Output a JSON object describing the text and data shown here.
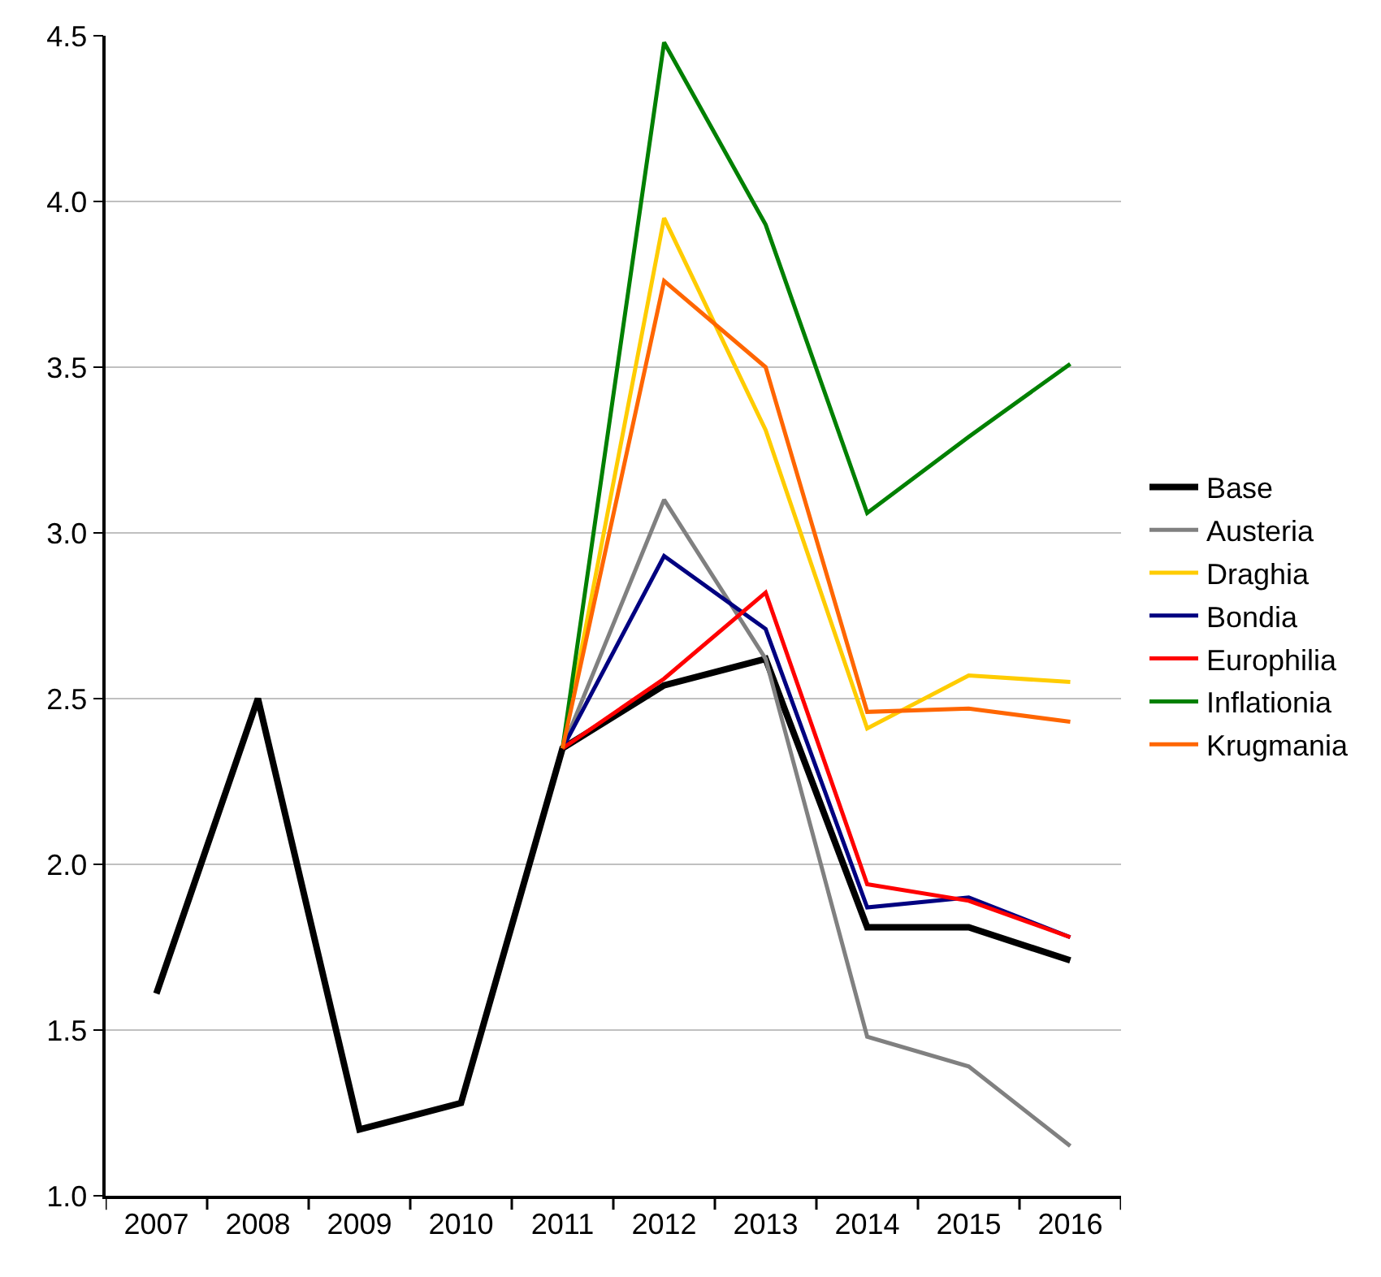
{
  "chart_data": {
    "type": "line",
    "categories": [
      "2007",
      "2008",
      "2009",
      "2010",
      "2011",
      "2012",
      "2013",
      "2014",
      "2015",
      "2016"
    ],
    "series": [
      {
        "name": "Base",
        "color": "#000000",
        "values": [
          1.61,
          2.5,
          1.2,
          1.28,
          2.35,
          2.54,
          2.62,
          1.81,
          1.81,
          1.71
        ]
      },
      {
        "name": "Austeria",
        "color": "#808080",
        "values": [
          null,
          null,
          null,
          null,
          2.35,
          3.1,
          2.62,
          1.48,
          1.39,
          1.15
        ]
      },
      {
        "name": "Draghia",
        "color": "#ffcc00",
        "values": [
          null,
          null,
          null,
          null,
          2.35,
          3.95,
          3.31,
          2.41,
          2.57,
          2.55
        ]
      },
      {
        "name": "Bondia",
        "color": "#000080",
        "values": [
          null,
          null,
          null,
          null,
          2.35,
          2.93,
          2.71,
          1.87,
          1.9,
          1.78
        ]
      },
      {
        "name": "Europhilia",
        "color": "#ff0000",
        "values": [
          null,
          null,
          null,
          null,
          2.35,
          2.56,
          2.82,
          1.94,
          1.89,
          1.78
        ]
      },
      {
        "name": "Inflationia",
        "color": "#008000",
        "values": [
          null,
          null,
          null,
          null,
          2.35,
          4.48,
          3.93,
          3.06,
          3.29,
          3.51
        ]
      },
      {
        "name": "Krugmania",
        "color": "#ff6600",
        "values": [
          null,
          null,
          null,
          null,
          2.35,
          3.76,
          3.5,
          2.46,
          2.47,
          2.43
        ]
      }
    ],
    "ylim": [
      1.0,
      4.5
    ],
    "yticks": [
      {
        "value": 1.0,
        "label": "1.0"
      },
      {
        "value": 1.5,
        "label": "1.5"
      },
      {
        "value": 2.0,
        "label": "2.0"
      },
      {
        "value": 2.5,
        "label": "2.5"
      },
      {
        "value": 3.0,
        "label": "3.0"
      },
      {
        "value": 3.5,
        "label": "3.5"
      },
      {
        "value": 4.0,
        "label": "4.0"
      },
      {
        "value": 4.5,
        "label": "4.5"
      }
    ],
    "grid": "y",
    "legend": "right",
    "marker": "none",
    "line_style": "solid"
  }
}
